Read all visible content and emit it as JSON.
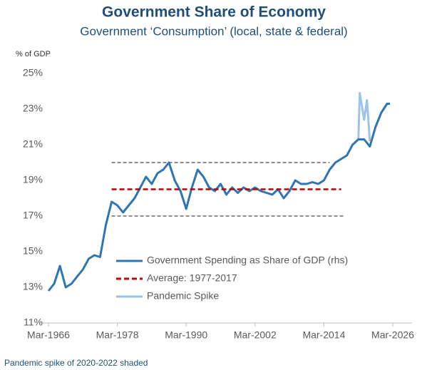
{
  "chart_data": {
    "type": "line",
    "title": "Government Share of Economy",
    "subtitle": "Government ‘Consumption’ (local, state & federal)",
    "y_axis_label": "% of GDP",
    "footnote": "Pandemic spike of 2020-2022 shaded",
    "xlim": [
      "Mar-1966",
      "Mar-2026"
    ],
    "xticks": [
      "Mar-1966",
      "Mar-1978",
      "Mar-1990",
      "Mar-2002",
      "Mar-2014",
      "Mar-2026"
    ],
    "ylim": [
      11,
      25
    ],
    "yticks": [
      {
        "value": 11,
        "label": "11%"
      },
      {
        "value": 13,
        "label": "13%"
      },
      {
        "value": 15,
        "label": "15%"
      },
      {
        "value": 17,
        "label": "17%"
      },
      {
        "value": 19,
        "label": "19%"
      },
      {
        "value": 21,
        "label": "21%"
      },
      {
        "value": 23,
        "label": "23%"
      },
      {
        "value": 25,
        "label": "25%"
      }
    ],
    "series": [
      {
        "name": "Government Spending as Share of GDP (rhs)",
        "color": "#2e75b6",
        "dash": false,
        "x": [
          "Mar-1966",
          "Mar-1967",
          "Mar-1968",
          "Mar-1969",
          "Mar-1970",
          "Mar-1971",
          "Mar-1972",
          "Mar-1973",
          "Mar-1974",
          "Mar-1975",
          "Mar-1976",
          "Mar-1977",
          "Mar-1978",
          "Mar-1979",
          "Mar-1980",
          "Mar-1981",
          "Mar-1982",
          "Mar-1983",
          "Mar-1984",
          "Mar-1985",
          "Mar-1986",
          "Mar-1987",
          "Mar-1988",
          "Mar-1989",
          "Mar-1990",
          "Mar-1991",
          "Mar-1992",
          "Mar-1993",
          "Mar-1994",
          "Mar-1995",
          "Mar-1996",
          "Mar-1997",
          "Mar-1998",
          "Mar-1999",
          "Mar-2000",
          "Mar-2001",
          "Mar-2002",
          "Mar-2003",
          "Mar-2004",
          "Mar-2005",
          "Mar-2006",
          "Mar-2007",
          "Mar-2008",
          "Mar-2009",
          "Mar-2010",
          "Mar-2011",
          "Mar-2012",
          "Mar-2013",
          "Mar-2014",
          "Mar-2015",
          "Mar-2016",
          "Mar-2017",
          "Mar-2018",
          "Mar-2019",
          "Mar-2020",
          "Mar-2021",
          "Mar-2022",
          "Mar-2023",
          "Mar-2024",
          "Mar-2025",
          "Sep-2025"
        ],
        "values": [
          12.8,
          13.2,
          14.2,
          13.0,
          13.2,
          13.6,
          14.0,
          14.6,
          14.8,
          14.7,
          16.5,
          17.8,
          17.6,
          17.2,
          17.6,
          18.0,
          18.6,
          19.2,
          18.8,
          19.4,
          19.6,
          20.0,
          19.0,
          18.4,
          17.4,
          18.6,
          19.6,
          19.2,
          18.6,
          18.4,
          18.8,
          18.2,
          18.6,
          18.3,
          18.6,
          18.4,
          18.6,
          18.4,
          18.3,
          18.2,
          18.5,
          18.0,
          18.4,
          19.0,
          18.8,
          18.8,
          18.9,
          18.8,
          19.0,
          19.6,
          20.0,
          20.2,
          20.4,
          21.0,
          21.3,
          21.3,
          20.9,
          22.0,
          22.8,
          23.3,
          23.3
        ]
      },
      {
        "name": "Average: 1977-2017",
        "color": "#c00000",
        "dash": true,
        "x": [
          "Mar-1977",
          "Mar-2017"
        ],
        "values": [
          18.5,
          18.5
        ]
      },
      {
        "name": "Pandemic Spike",
        "color": "#9dc3e6",
        "dash": false,
        "x": [
          "Mar-2020",
          "Jun-2020",
          "Mar-2021",
          "Sep-2021",
          "Mar-2022"
        ],
        "values": [
          21.3,
          23.9,
          22.4,
          23.5,
          21.2
        ]
      }
    ],
    "reference_lines": [
      {
        "value": 20,
        "x": [
          "Mar-1977",
          "Mar-2015"
        ],
        "color": "#8c8c8c"
      },
      {
        "value": 17,
        "x": [
          "Mar-1977",
          "Sep-2017"
        ],
        "color": "#8c8c8c"
      }
    ]
  }
}
